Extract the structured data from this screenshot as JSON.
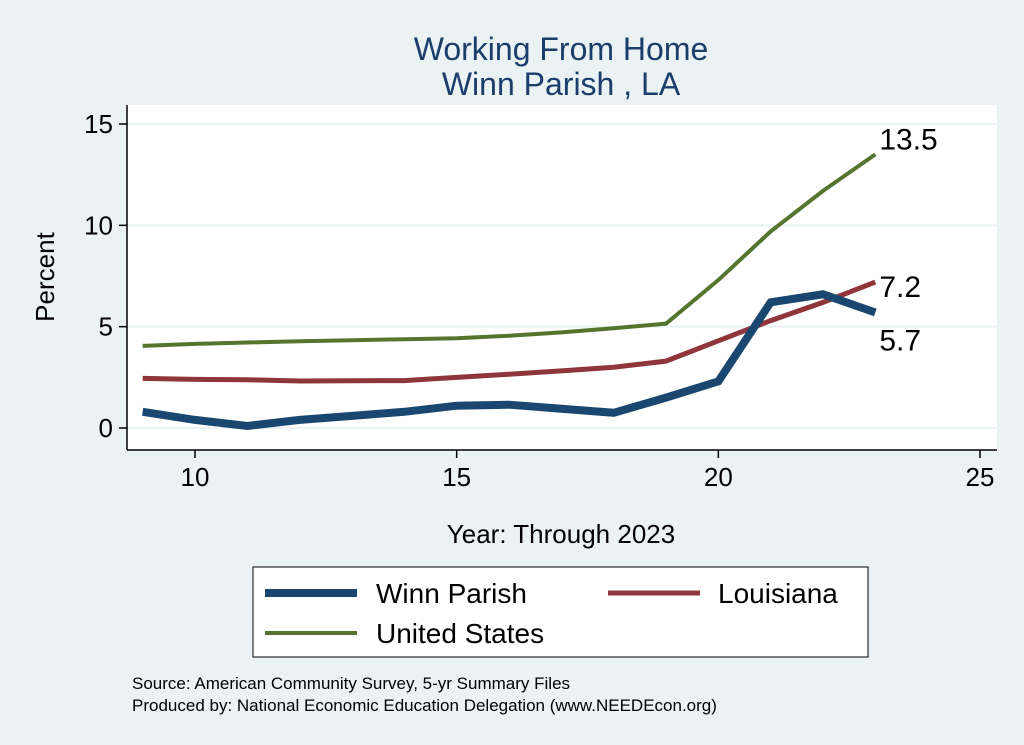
{
  "chart_data": {
    "type": "line",
    "title": "Working From Home",
    "subtitle": "Winn Parish , LA",
    "xlabel": "Year: Through 2023",
    "ylabel": "Percent",
    "xlim": [
      9,
      25
    ],
    "ylim": [
      0,
      15
    ],
    "xticks": [
      10,
      15,
      20,
      25
    ],
    "yticks": [
      0,
      5,
      10,
      15
    ],
    "grid": true,
    "legend_position": "bottom",
    "series": [
      {
        "name": "Winn Parish",
        "color": "#1a476f",
        "x": [
          9,
          10,
          11,
          12,
          13,
          14,
          15,
          16,
          17,
          18,
          19,
          20,
          21,
          22,
          23
        ],
        "values": [
          0.8,
          0.4,
          0.1,
          0.4,
          0.6,
          0.8,
          1.1,
          1.15,
          0.95,
          0.75,
          1.5,
          2.3,
          6.2,
          6.6,
          5.7
        ],
        "end_label": "5.7"
      },
      {
        "name": "Louisiana",
        "color": "#90353b",
        "x": [
          9,
          10,
          11,
          12,
          13,
          14,
          15,
          16,
          17,
          18,
          19,
          20,
          21,
          22,
          23
        ],
        "values": [
          2.45,
          2.4,
          2.38,
          2.32,
          2.33,
          2.34,
          2.5,
          2.65,
          2.82,
          3.0,
          3.3,
          4.3,
          5.3,
          6.2,
          7.2
        ],
        "end_label": "7.2"
      },
      {
        "name": "United States",
        "color": "#55752f",
        "x": [
          9,
          10,
          11,
          12,
          13,
          14,
          15,
          16,
          17,
          18,
          19,
          20,
          21,
          22,
          23
        ],
        "values": [
          4.05,
          4.15,
          4.22,
          4.28,
          4.33,
          4.38,
          4.43,
          4.55,
          4.72,
          4.92,
          5.15,
          7.3,
          9.7,
          11.7,
          13.5
        ],
        "end_label": "13.5"
      }
    ],
    "notes": [
      "Source: American Community Survey, 5-yr Summary Files",
      "Produced by: National Economic Education Delegation (www.NEEDEcon.org)"
    ]
  }
}
